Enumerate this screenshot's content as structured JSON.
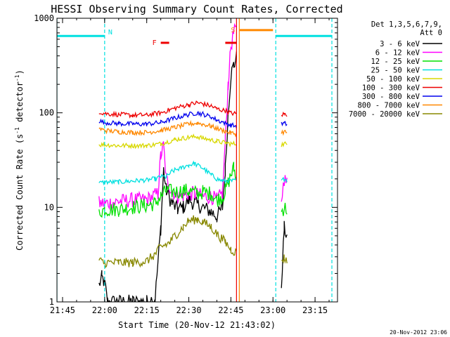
{
  "chart_data": {
    "type": "line",
    "title": "HESSI Observing Summary Count Rates, Corrected",
    "xlabel": "Start Time (20-Nov-12 21:43:02)",
    "ylabel_main": "Corrected Count Rate (s",
    "ylabel_sup1": "-1",
    "ylabel_mid": " detector",
    "ylabel_sup2": "-1",
    "ylabel_end": ")",
    "yscale": "log",
    "ylim": [
      1,
      1000
    ],
    "xlim": [
      "21:43",
      "23:23"
    ],
    "x_tick_labels": [
      "21:45",
      "22:00",
      "22:15",
      "22:30",
      "22:45",
      "23:00",
      "23:15"
    ],
    "y_tick_labels": [
      "1",
      "10",
      "100",
      "1000"
    ],
    "footer": "20-Nov-2012 23:06",
    "legend": {
      "placement": "right",
      "header_line1": "Det 1,3,5,6,7,9,",
      "header_line2": "Att 0",
      "entries": [
        {
          "label": "3 - 6 keV",
          "color": "#000000"
        },
        {
          "label": "6 - 12 keV",
          "color": "#ff00ff"
        },
        {
          "label": "12 - 25 keV",
          "color": "#00e000"
        },
        {
          "label": "25 - 50 keV",
          "color": "#00e0e0"
        },
        {
          "label": "50 - 100 keV",
          "color": "#d8d800"
        },
        {
          "label": "100 - 300 keV",
          "color": "#ee0000"
        },
        {
          "label": "300 - 800 keV",
          "color": "#0000ee"
        },
        {
          "label": "800 - 7000 keV",
          "color": "#ff8800"
        },
        {
          "label": "7000 - 20000 keV",
          "color": "#888800"
        }
      ]
    },
    "flag_bars": [
      {
        "label": "N",
        "color": "#00e0e0",
        "level": 650,
        "segments": [
          [
            "21:43",
            "22:00"
          ],
          [
            "23:01",
            "23:21"
          ]
        ]
      },
      {
        "label": "F",
        "color": "#ee0000",
        "level": 550,
        "segments": [
          [
            "22:20",
            "22:23"
          ],
          [
            "22:43",
            "22:47"
          ]
        ]
      },
      {
        "label": "S",
        "color": "#ff8800",
        "level": 750,
        "segments": [
          [
            "22:48",
            "23:00"
          ]
        ]
      }
    ],
    "vertical_lines": [
      {
        "t": "21:43",
        "color": "#00e0e0",
        "style": "solid"
      },
      {
        "t": "22:00",
        "color": "#00e0e0",
        "style": "dashed"
      },
      {
        "t": "22:47",
        "color": "#ee0000",
        "style": "solid"
      },
      {
        "t": "22:48",
        "color": "#ff8800",
        "style": "solid"
      },
      {
        "t": "23:01",
        "color": "#00e0e0",
        "style": "dashed"
      },
      {
        "t": "23:21",
        "color": "#00e0e0",
        "style": "dashed"
      }
    ],
    "gaps": [
      [
        "22:48",
        "23:03"
      ]
    ],
    "series": [
      {
        "name": "3 - 6 keV",
        "color": "#000000",
        "x": [
          "21:58",
          "21:59",
          "22:00",
          "22:01",
          "22:05",
          "22:10",
          "22:15",
          "22:18",
          "22:20",
          "22:21",
          "22:22",
          "22:24",
          "22:26",
          "22:28",
          "22:30",
          "22:32",
          "22:35",
          "22:38",
          "22:40",
          "22:42",
          "22:43",
          "22:44",
          "22:45",
          "22:46",
          "22:47",
          "23:03",
          "23:04",
          "23:05"
        ],
        "y": [
          1.5,
          1.8,
          1.6,
          1.0,
          1.0,
          1.0,
          1.0,
          1.1,
          6,
          25,
          15,
          11,
          9.5,
          10,
          12,
          11,
          10,
          9,
          8,
          10,
          25,
          100,
          250,
          320,
          380,
          1.5,
          6,
          5
        ]
      },
      {
        "name": "6 - 12 keV",
        "color": "#ff00ff",
        "x": [
          "21:58",
          "22:00",
          "22:05",
          "22:10",
          "22:15",
          "22:19",
          "22:20",
          "22:21",
          "22:22",
          "22:24",
          "22:26",
          "22:28",
          "22:30",
          "22:32",
          "22:35",
          "22:38",
          "22:40",
          "22:42",
          "22:43",
          "22:44",
          "22:45",
          "22:46",
          "22:47",
          "23:03",
          "23:04",
          "23:05"
        ],
        "y": [
          11,
          11,
          11.5,
          12,
          12,
          14,
          35,
          45,
          20,
          15,
          13,
          13.5,
          14,
          14,
          13,
          13,
          12,
          14,
          50,
          200,
          500,
          700,
          750,
          12,
          20,
          18
        ]
      },
      {
        "name": "12 - 25 keV",
        "color": "#00e000",
        "x": [
          "21:58",
          "22:00",
          "22:05",
          "22:10",
          "22:15",
          "22:18",
          "22:20",
          "22:22",
          "22:25",
          "22:28",
          "22:30",
          "22:33",
          "22:35",
          "22:38",
          "22:40",
          "22:42",
          "22:43",
          "22:44",
          "22:45",
          "22:46",
          "22:47",
          "23:03",
          "23:04",
          "23:05"
        ],
        "y": [
          9,
          9.5,
          9.5,
          10,
          10.5,
          11,
          13,
          15,
          14.5,
          15,
          15,
          14,
          14.5,
          14,
          12,
          13,
          15,
          18,
          22,
          26,
          20,
          9,
          10,
          9.5
        ]
      },
      {
        "name": "25 - 50 keV",
        "color": "#00e0e0",
        "x": [
          "21:58",
          "22:00",
          "22:05",
          "22:10",
          "22:15",
          "22:18",
          "22:20",
          "22:22",
          "22:24",
          "22:27",
          "22:30",
          "22:32",
          "22:35",
          "22:38",
          "22:40",
          "22:42",
          "22:44",
          "22:46",
          "22:47",
          "23:03",
          "23:04",
          "23:05"
        ],
        "y": [
          18,
          18.5,
          18.5,
          19,
          19.5,
          20,
          21,
          21,
          24,
          26,
          28,
          29,
          26,
          22,
          20,
          19,
          19,
          19,
          20,
          19,
          20,
          19.5
        ]
      },
      {
        "name": "50 - 100 keV",
        "color": "#d8d800",
        "x": [
          "21:58",
          "22:00",
          "22:05",
          "22:10",
          "22:15",
          "22:20",
          "22:25",
          "22:30",
          "22:33",
          "22:35",
          "22:40",
          "22:43",
          "22:45",
          "22:47",
          "23:03",
          "23:04",
          "23:05"
        ],
        "y": [
          46,
          46,
          45,
          45,
          45,
          47,
          52,
          55,
          56,
          54,
          50,
          48,
          47,
          47,
          46,
          47,
          46.5
        ]
      },
      {
        "name": "100 - 300 keV",
        "color": "#ee0000",
        "x": [
          "21:58",
          "22:00",
          "22:05",
          "22:10",
          "22:15",
          "22:20",
          "22:25",
          "22:30",
          "22:33",
          "22:35",
          "22:38",
          "22:40",
          "22:43",
          "22:45",
          "22:47",
          "23:03",
          "23:04",
          "23:05"
        ],
        "y": [
          103,
          98,
          96,
          94,
          95,
          100,
          112,
          122,
          128,
          124,
          118,
          110,
          105,
          100,
          97,
          95,
          97,
          96
        ]
      },
      {
        "name": "300 - 800 keV",
        "color": "#0000ee",
        "x": [
          "21:58",
          "22:00",
          "22:05",
          "22:10",
          "22:15",
          "22:20",
          "22:25",
          "22:30",
          "22:33",
          "22:35",
          "22:38",
          "22:40",
          "22:43",
          "22:45",
          "22:47",
          "23:03",
          "23:04",
          "23:05"
        ],
        "y": [
          82,
          79,
          77,
          76,
          76,
          79,
          88,
          96,
          100,
          97,
          90,
          84,
          78,
          74,
          72,
          76,
          77,
          76
        ]
      },
      {
        "name": "800 - 7000 keV",
        "color": "#ff8800",
        "x": [
          "21:58",
          "22:00",
          "22:05",
          "22:10",
          "22:15",
          "22:20",
          "22:25",
          "22:30",
          "22:33",
          "22:35",
          "22:38",
          "22:40",
          "22:43",
          "22:45",
          "22:47",
          "23:03",
          "23:04",
          "23:05"
        ],
        "y": [
          68,
          65,
          63,
          62,
          62,
          65,
          70,
          76,
          78,
          76,
          72,
          68,
          64,
          61,
          60,
          62,
          63,
          62
        ]
      },
      {
        "name": "7000 - 20000 keV",
        "color": "#888800",
        "x": [
          "21:58",
          "22:00",
          "22:05",
          "22:10",
          "22:15",
          "22:18",
          "22:20",
          "22:23",
          "22:25",
          "22:28",
          "22:30",
          "22:33",
          "22:35",
          "22:38",
          "22:40",
          "22:43",
          "22:45",
          "22:47",
          "23:03",
          "23:04",
          "23:05"
        ],
        "y": [
          2.7,
          2.6,
          2.6,
          2.6,
          2.7,
          3.2,
          3.8,
          4.2,
          5,
          6.2,
          7.2,
          7.5,
          7,
          6.2,
          5.2,
          4.3,
          3.6,
          3.3,
          2.8,
          2.9,
          2.8
        ]
      }
    ]
  }
}
